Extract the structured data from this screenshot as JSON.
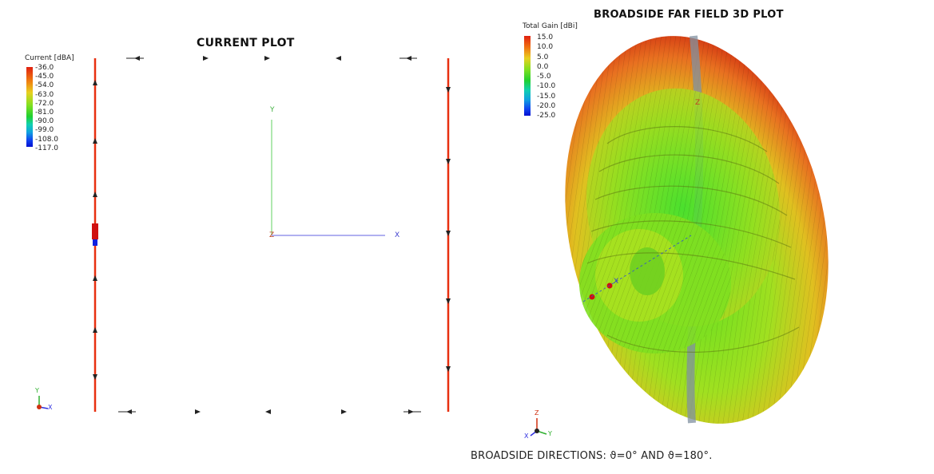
{
  "current_plot": {
    "title": "CURRENT PLOT",
    "colorbar": {
      "title": "Current [dBA]",
      "ticks": [
        "-36.0",
        "-45.0",
        "-54.0",
        "-63.0",
        "-72.0",
        "-81.0",
        "-90.0",
        "-99.0",
        "-108.0",
        "-117.0"
      ],
      "colors": [
        "#e03010",
        "#f07010",
        "#f0b010",
        "#d8e020",
        "#80e020",
        "#20d030",
        "#10d0a0",
        "#10a0e0",
        "#1040f0",
        "#0010d0"
      ]
    },
    "axes": {
      "y": "Y",
      "z": "Z",
      "x": "X"
    },
    "triad": {
      "y": "Y",
      "x": "X"
    }
  },
  "far_field_plot": {
    "title": "BROADSIDE FAR FIELD 3D PLOT",
    "colorbar": {
      "title": "Total Gain [dBi]",
      "ticks": [
        "15.0",
        "10.0",
        "5.0",
        "0.0",
        "-5.0",
        "-10.0",
        "-15.0",
        "-20.0",
        "-25.0"
      ],
      "colors": [
        "#e02010",
        "#f08010",
        "#e8d020",
        "#90e020",
        "#30d030",
        "#10d0a0",
        "#10a0e0",
        "#1050f0",
        "#0010d0"
      ]
    },
    "axes": {
      "z": "Z",
      "x": "X"
    },
    "triad": {
      "z": "Z",
      "x": "X",
      "y": "Y"
    },
    "caption": "BROADSIDE DIRECTIONS: ϑ=0° AND ϑ=180°."
  }
}
